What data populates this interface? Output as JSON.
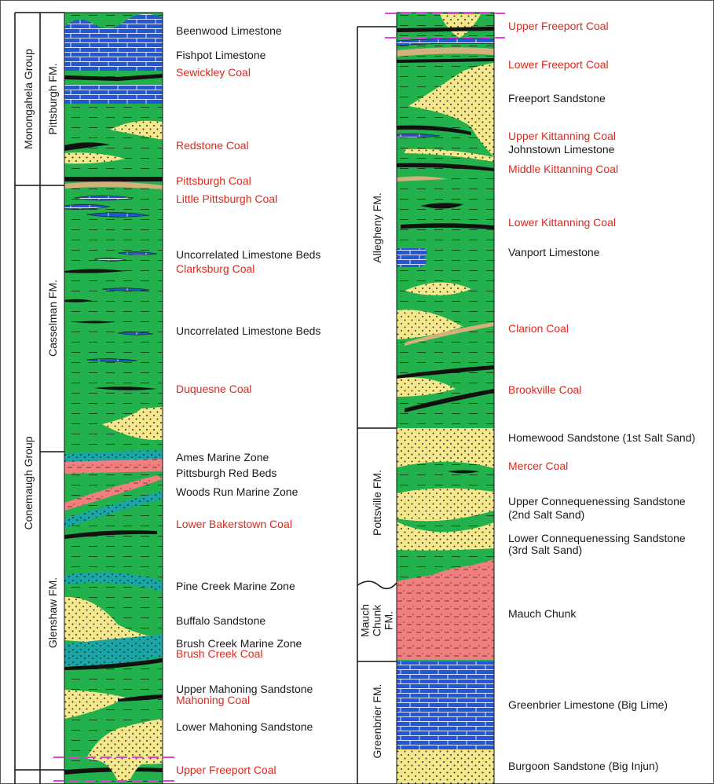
{
  "colors": {
    "shale": "#22b14c",
    "limestone": "#2357d6",
    "sandstone": "#f5e88c",
    "coal": "#111111",
    "redbeds": "#f08080",
    "marine": "#1aa6a6",
    "correlation_line": "#e040e0",
    "label_red": "#e0271b",
    "label_black": "#1a1a1a"
  },
  "left_column": {
    "groups": [
      {
        "name": "Monongahela Group"
      },
      {
        "name": "Conemaugh Group"
      }
    ],
    "formations": [
      {
        "name": "Pittsburgh FM."
      },
      {
        "name": "Casselman FM."
      },
      {
        "name": "Glenshaw FM."
      }
    ],
    "labels": [
      {
        "text": "Beenwood Limestone",
        "kind": "black"
      },
      {
        "text": "Fishpot Limestone",
        "kind": "black"
      },
      {
        "text": "Sewickley Coal",
        "kind": "red"
      },
      {
        "text": "Redstone Coal",
        "kind": "red"
      },
      {
        "text": "Pittsburgh Coal",
        "kind": "red"
      },
      {
        "text": "Little Pittsburgh Coal",
        "kind": "red"
      },
      {
        "text": "Uncorrelated Limestone Beds",
        "kind": "black"
      },
      {
        "text": "Clarksburg Coal",
        "kind": "red"
      },
      {
        "text": "Uncorrelated Limestone Beds",
        "kind": "black"
      },
      {
        "text": "Duquesne Coal",
        "kind": "red"
      },
      {
        "text": "Ames Marine Zone",
        "kind": "black"
      },
      {
        "text": "Pittsburgh Red Beds",
        "kind": "black"
      },
      {
        "text": "Woods Run Marine Zone",
        "kind": "black"
      },
      {
        "text": "Lower Bakerstown Coal",
        "kind": "red"
      },
      {
        "text": "Pine Creek Marine Zone",
        "kind": "black"
      },
      {
        "text": "Buffalo Sandstone",
        "kind": "black"
      },
      {
        "text": "Brush Creek Marine Zone",
        "kind": "black"
      },
      {
        "text": "Brush Creek Coal",
        "kind": "red"
      },
      {
        "text": "Upper Mahoning Sandstone",
        "kind": "black"
      },
      {
        "text": "Mahoning Coal",
        "kind": "red"
      },
      {
        "text": "Lower Mahoning Sandstone",
        "kind": "black"
      },
      {
        "text": "Upper Freeport Coal",
        "kind": "red"
      }
    ]
  },
  "right_column": {
    "formations": [
      {
        "name": "Allegheny FM."
      },
      {
        "name": "Pottsville FM."
      },
      {
        "name": "Mauch Chunk FM."
      },
      {
        "name": "Greenbrier FM."
      }
    ],
    "labels": [
      {
        "text": "Upper Freeport Coal",
        "kind": "red"
      },
      {
        "text": "Lower Freeport Coal",
        "kind": "red"
      },
      {
        "text": "Freeport Sandstone",
        "kind": "black"
      },
      {
        "text": "Upper Kittanning Coal",
        "kind": "red"
      },
      {
        "text": "Johnstown Limestone",
        "kind": "black"
      },
      {
        "text": "Middle Kittanning Coal",
        "kind": "red"
      },
      {
        "text": "Lower Kittanning Coal",
        "kind": "red"
      },
      {
        "text": "Vanport Limestone",
        "kind": "black"
      },
      {
        "text": "Clarion Coal",
        "kind": "red"
      },
      {
        "text": "Brookville Coal",
        "kind": "red"
      },
      {
        "text": "Homewood Sandstone (1st Salt Sand)",
        "kind": "black"
      },
      {
        "text": "Mercer Coal",
        "kind": "red"
      },
      {
        "text": "Upper Connequenessing Sandstone",
        "kind": "black"
      },
      {
        "text": "(2nd Salt Sand)",
        "kind": "black"
      },
      {
        "text": "Lower Connequenessing Sandstone",
        "kind": "black"
      },
      {
        "text": "(3rd Salt Sand)",
        "kind": "black"
      },
      {
        "text": "Mauch Chunk",
        "kind": "black"
      },
      {
        "text": "Greenbrier Limestone (Big Lime)",
        "kind": "black"
      },
      {
        "text": "Burgoon Sandstone (Big Injun)",
        "kind": "black"
      }
    ]
  }
}
